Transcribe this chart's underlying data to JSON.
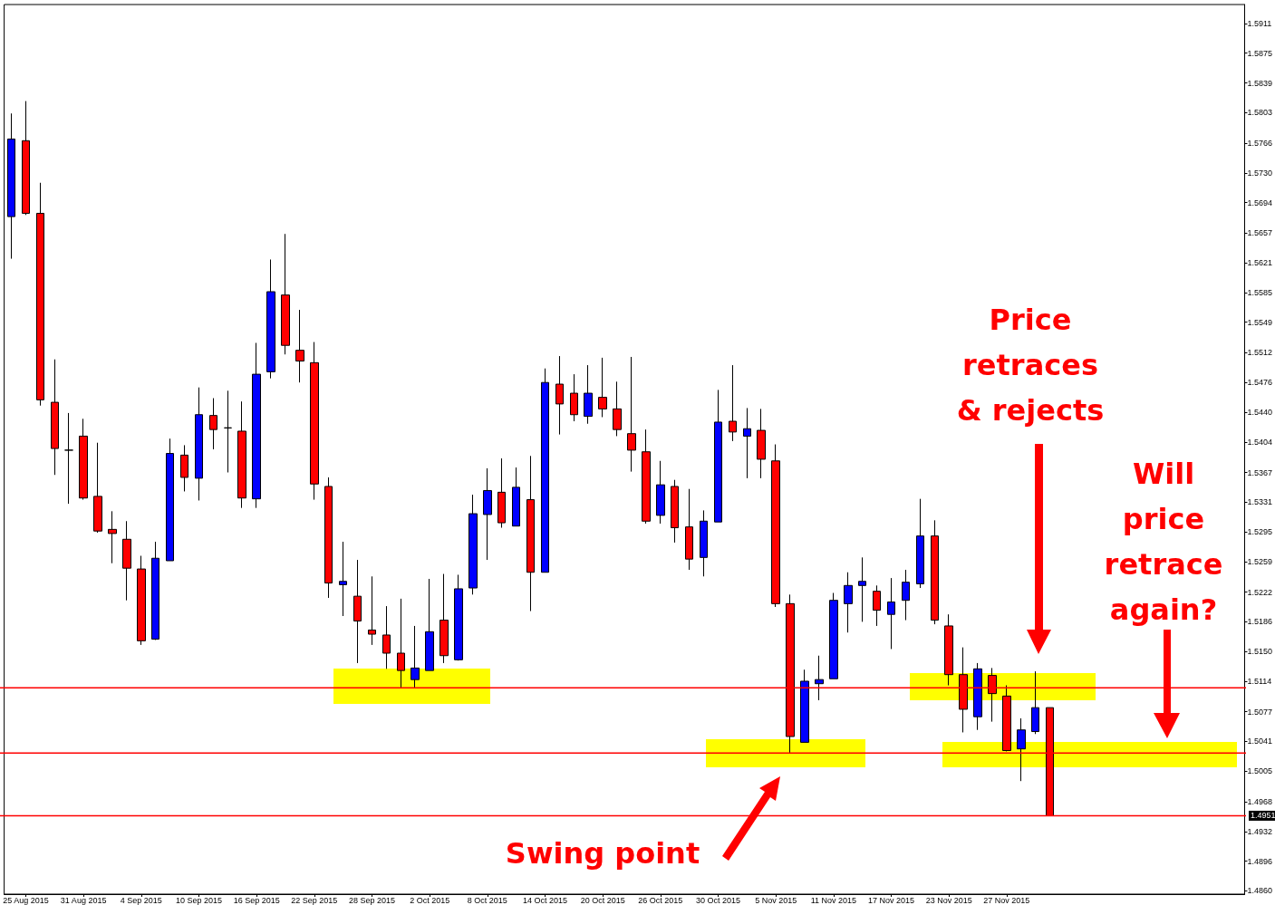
{
  "chart_data": {
    "type": "candlestick",
    "categories": [
      null,
      "25 Aug 2015",
      null,
      null,
      null,
      "31 Aug 2015",
      null,
      null,
      null,
      "4 Sep 2015",
      null,
      null,
      null,
      "10 Sep 2015",
      null,
      null,
      null,
      "16 Sep 2015",
      null,
      null,
      null,
      "22 Sep 2015",
      null,
      null,
      null,
      "28 Sep 2015",
      null,
      null,
      null,
      "2 Oct 2015",
      null,
      null,
      null,
      "8 Oct 2015",
      null,
      null,
      null,
      "14 Oct 2015",
      null,
      null,
      null,
      "20 Oct 2015",
      null,
      null,
      null,
      "26 Oct 2015",
      null,
      null,
      null,
      "30 Oct 2015",
      null,
      null,
      null,
      "5 Nov 2015",
      null,
      null,
      null,
      "11 Nov 2015",
      null,
      null,
      null,
      "17 Nov 2015",
      null,
      null,
      null,
      "23 Nov 2015",
      null,
      null,
      null,
      "27 Nov 2015",
      null,
      null,
      null,
      null,
      null,
      null,
      null,
      null,
      null,
      null,
      null,
      null,
      null,
      null,
      null,
      null
    ],
    "ohlc": [
      [
        1.5677,
        1.5802,
        1.5626,
        1.5771
      ],
      [
        1.5769,
        1.5817,
        1.5679,
        1.5681
      ],
      [
        1.5681,
        1.5718,
        1.5448,
        1.5455
      ],
      [
        1.5452,
        1.5504,
        1.5364,
        1.5396
      ],
      [
        1.5394,
        1.5439,
        1.5329,
        1.5394
      ],
      [
        1.5411,
        1.5432,
        1.5334,
        1.5336
      ],
      [
        1.5338,
        1.5403,
        1.5294,
        1.5296
      ],
      [
        1.5298,
        1.532,
        1.5257,
        1.5293
      ],
      [
        1.5286,
        1.5308,
        1.5212,
        1.5251
      ],
      [
        1.525,
        1.5266,
        1.5158,
        1.5163
      ],
      [
        1.5165,
        1.5283,
        1.5164,
        1.5263
      ],
      [
        1.526,
        1.5408,
        1.526,
        1.539
      ],
      [
        1.5388,
        1.54,
        1.5344,
        1.5361
      ],
      [
        1.536,
        1.547,
        1.5333,
        1.5437
      ],
      [
        1.5436,
        1.5457,
        1.5395,
        1.5419
      ],
      [
        1.5421,
        1.5466,
        1.5367,
        1.5421
      ],
      [
        1.5417,
        1.5453,
        1.5324,
        1.5336
      ],
      [
        1.5335,
        1.5524,
        1.5324,
        1.5486
      ],
      [
        1.5489,
        1.5625,
        1.5481,
        1.5586
      ],
      [
        1.5582,
        1.5656,
        1.551,
        1.5521
      ],
      [
        1.5515,
        1.5564,
        1.5476,
        1.5502
      ],
      [
        1.55,
        1.5525,
        1.5334,
        1.5353
      ],
      [
        1.535,
        1.5361,
        1.5215,
        1.5233
      ],
      [
        1.5231,
        1.5283,
        1.5193,
        1.5235
      ],
      [
        1.5217,
        1.5261,
        1.5136,
        1.5187
      ],
      [
        1.5176,
        1.5241,
        1.5158,
        1.5171
      ],
      [
        1.517,
        1.5205,
        1.5129,
        1.5148
      ],
      [
        1.5148,
        1.5214,
        1.5106,
        1.5127
      ],
      [
        1.5116,
        1.5181,
        1.5106,
        1.513
      ],
      [
        1.5127,
        1.5238,
        1.5127,
        1.5174
      ],
      [
        1.5188,
        1.5244,
        1.5136,
        1.5145
      ],
      [
        1.514,
        1.5243,
        1.5139,
        1.5226
      ],
      [
        1.5227,
        1.534,
        1.5219,
        1.5317
      ],
      [
        1.5316,
        1.5372,
        1.5261,
        1.5345
      ],
      [
        1.5343,
        1.5384,
        1.53,
        1.5306
      ],
      [
        1.5302,
        1.5373,
        1.5302,
        1.5349
      ],
      [
        1.5334,
        1.5387,
        1.5199,
        1.5246
      ],
      [
        1.5246,
        1.5493,
        1.5246,
        1.5476
      ],
      [
        1.5474,
        1.5508,
        1.5413,
        1.545
      ],
      [
        1.5463,
        1.5486,
        1.5429,
        1.5437
      ],
      [
        1.5435,
        1.5497,
        1.5426,
        1.5463
      ],
      [
        1.5458,
        1.5506,
        1.5434,
        1.5444
      ],
      [
        1.5444,
        1.5477,
        1.5411,
        1.5419
      ],
      [
        1.5414,
        1.5507,
        1.5368,
        1.5394
      ],
      [
        1.5392,
        1.5419,
        1.5305,
        1.5308
      ],
      [
        1.5315,
        1.5381,
        1.5305,
        1.5352
      ],
      [
        1.535,
        1.5358,
        1.5282,
        1.53
      ],
      [
        1.5301,
        1.5347,
        1.5249,
        1.5262
      ],
      [
        1.5264,
        1.5321,
        1.5241,
        1.5308
      ],
      [
        1.5307,
        1.5467,
        1.5307,
        1.5428
      ],
      [
        1.5429,
        1.5497,
        1.5405,
        1.5416
      ],
      [
        1.5411,
        1.5445,
        1.536,
        1.542
      ],
      [
        1.5418,
        1.5444,
        1.536,
        1.5383
      ],
      [
        1.5381,
        1.5401,
        1.5204,
        1.5208
      ],
      [
        1.5208,
        1.5219,
        1.5027,
        1.5047
      ],
      [
        1.504,
        1.5128,
        1.504,
        1.5114
      ],
      [
        1.5111,
        1.5145,
        1.5091,
        1.5116
      ],
      [
        1.5117,
        1.5221,
        1.5117,
        1.5212
      ],
      [
        1.5208,
        1.5246,
        1.5173,
        1.523
      ],
      [
        1.523,
        1.5264,
        1.5186,
        1.5235
      ],
      [
        1.5223,
        1.523,
        1.5181,
        1.52
      ],
      [
        1.5195,
        1.5239,
        1.5153,
        1.521
      ],
      [
        1.5212,
        1.5249,
        1.5188,
        1.5234
      ],
      [
        1.5232,
        1.5335,
        1.5227,
        1.529
      ],
      [
        1.529,
        1.5309,
        1.5183,
        1.5188
      ],
      [
        1.5181,
        1.5195,
        1.5109,
        1.5122
      ],
      [
        1.5122,
        1.5155,
        1.5052,
        1.508
      ],
      [
        1.5071,
        1.5136,
        1.5055,
        1.5129
      ],
      [
        1.5121,
        1.513,
        1.5065,
        1.5099
      ],
      [
        1.5096,
        1.5109,
        1.5029,
        1.503
      ],
      [
        1.5032,
        1.5069,
        1.4993,
        1.5055
      ],
      [
        1.5053,
        1.5126,
        1.505,
        1.5082
      ],
      [
        1.5082,
        1.5082,
        1.4951,
        1.4951
      ],
      null,
      null,
      null,
      null,
      null,
      null,
      null,
      null,
      null,
      null,
      null,
      null,
      null
    ],
    "colors": [
      "#0000ff",
      "#ff0000",
      "#ff0000",
      "#ff0000",
      "#000000",
      "#ff0000",
      "#ff0000",
      "#ff0000",
      "#ff0000",
      "#ff0000",
      "#0000ff",
      "#0000ff",
      "#ff0000",
      "#0000ff",
      "#ff0000",
      "#000000",
      "#ff0000",
      "#0000ff",
      "#0000ff",
      "#ff0000",
      "#ff0000",
      "#ff0000",
      "#ff0000",
      "#0000ff",
      "#ff0000",
      "#ff0000",
      "#ff0000",
      "#ff0000",
      "#0000ff",
      "#0000ff",
      "#ff0000",
      "#0000ff",
      "#0000ff",
      "#0000ff",
      "#ff0000",
      "#0000ff",
      "#ff0000",
      "#0000ff",
      "#ff0000",
      "#ff0000",
      "#0000ff",
      "#ff0000",
      "#ff0000",
      "#ff0000",
      "#ff0000",
      "#0000ff",
      "#ff0000",
      "#ff0000",
      "#0000ff",
      "#0000ff",
      "#ff0000",
      "#0000ff",
      "#ff0000",
      "#ff0000",
      "#ff0000",
      "#0000ff",
      "#0000ff",
      "#0000ff",
      "#0000ff",
      "#0000ff",
      "#ff0000",
      "#0000ff",
      "#0000ff",
      "#0000ff",
      "#ff0000",
      "#ff0000",
      "#ff0000",
      "#0000ff",
      "#ff0000",
      "#ff0000",
      "#0000ff",
      "#0000ff",
      "#ff0000",
      null,
      null,
      null,
      null,
      null,
      null,
      null,
      null,
      null,
      null,
      null,
      null,
      null
    ],
    "ylim": [
      1.4856,
      1.5934
    ],
    "yticks": [
      {
        "value": 1.486,
        "label": "1.4860"
      },
      1.4896,
      1.4932,
      1.4968,
      1.5005,
      1.5041,
      1.5077,
      1.5114,
      {
        "value": 1.515,
        "label": "1.5150"
      },
      1.5186,
      1.5222,
      1.5259,
      1.5295,
      1.5331,
      1.5367,
      1.5404,
      {
        "value": 1.544,
        "label": "1.5440"
      },
      1.5476,
      1.5512,
      1.5549,
      1.5585,
      1.5621,
      1.5657,
      1.5694,
      {
        "value": 1.573,
        "label": "1.5730"
      },
      1.5766,
      1.5803,
      1.5839,
      1.5875,
      1.5911
    ],
    "ref_lines": [
      {
        "axis": "y",
        "value": 1.5106,
        "color": "#ff0000"
      },
      {
        "axis": "y",
        "value": 1.5027,
        "color": "#ff0000"
      },
      {
        "axis": "y",
        "value": 1.4951,
        "label": "1.4951",
        "color": "#ff0000"
      }
    ],
    "annotations": [
      "Price\nretraces\n& rejects",
      "Will\nprice\nretrace\nagain?",
      "Swing point"
    ]
  }
}
